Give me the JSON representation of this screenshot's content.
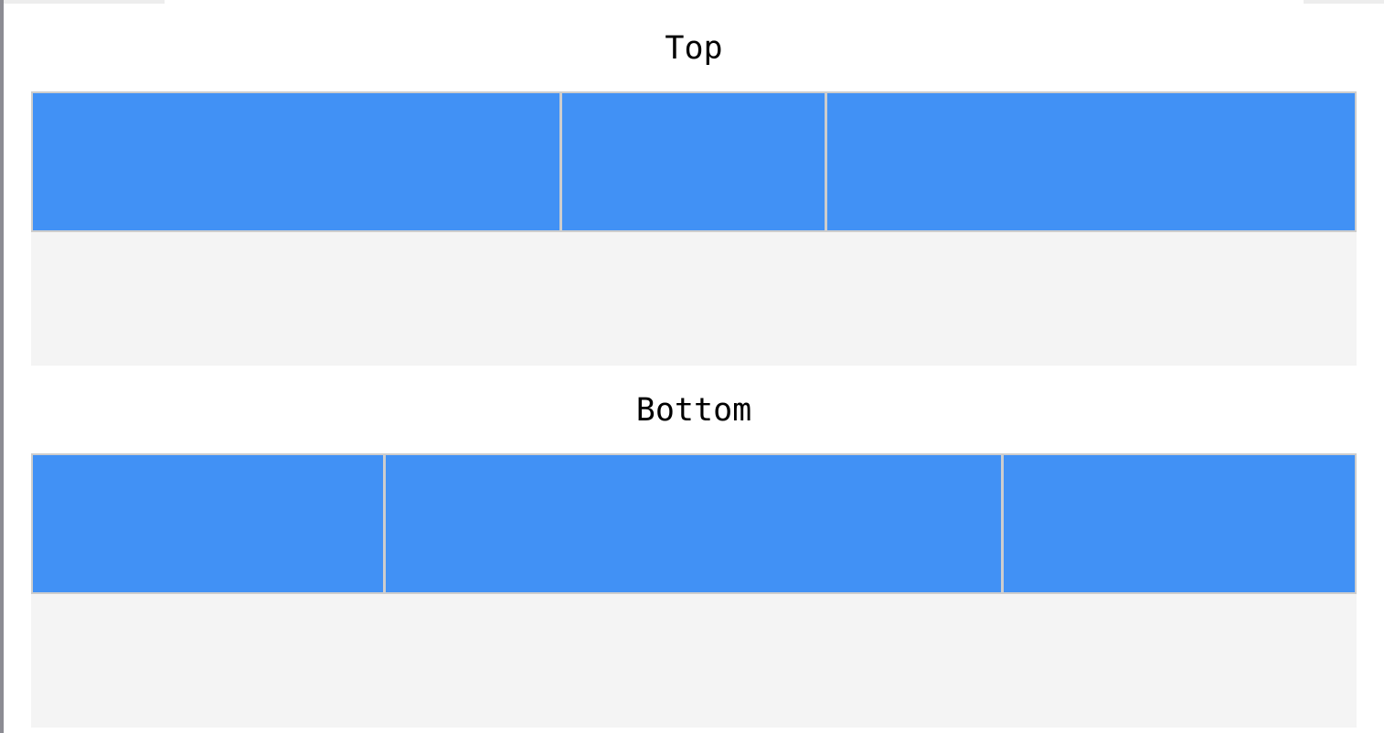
{
  "colors": {
    "segment_fill": "#4191f5",
    "segment_border": "#cdcdcd",
    "empty_area": "#f4f4f4",
    "background": "#ffffff"
  },
  "sections": [
    {
      "title": "Top",
      "segments": [
        {
          "share": 0.4
        },
        {
          "share": 0.2
        },
        {
          "share": 0.4
        }
      ]
    },
    {
      "title": "Bottom",
      "segments": [
        {
          "share": 0.267
        },
        {
          "share": 0.466
        },
        {
          "share": 0.267
        }
      ]
    }
  ]
}
